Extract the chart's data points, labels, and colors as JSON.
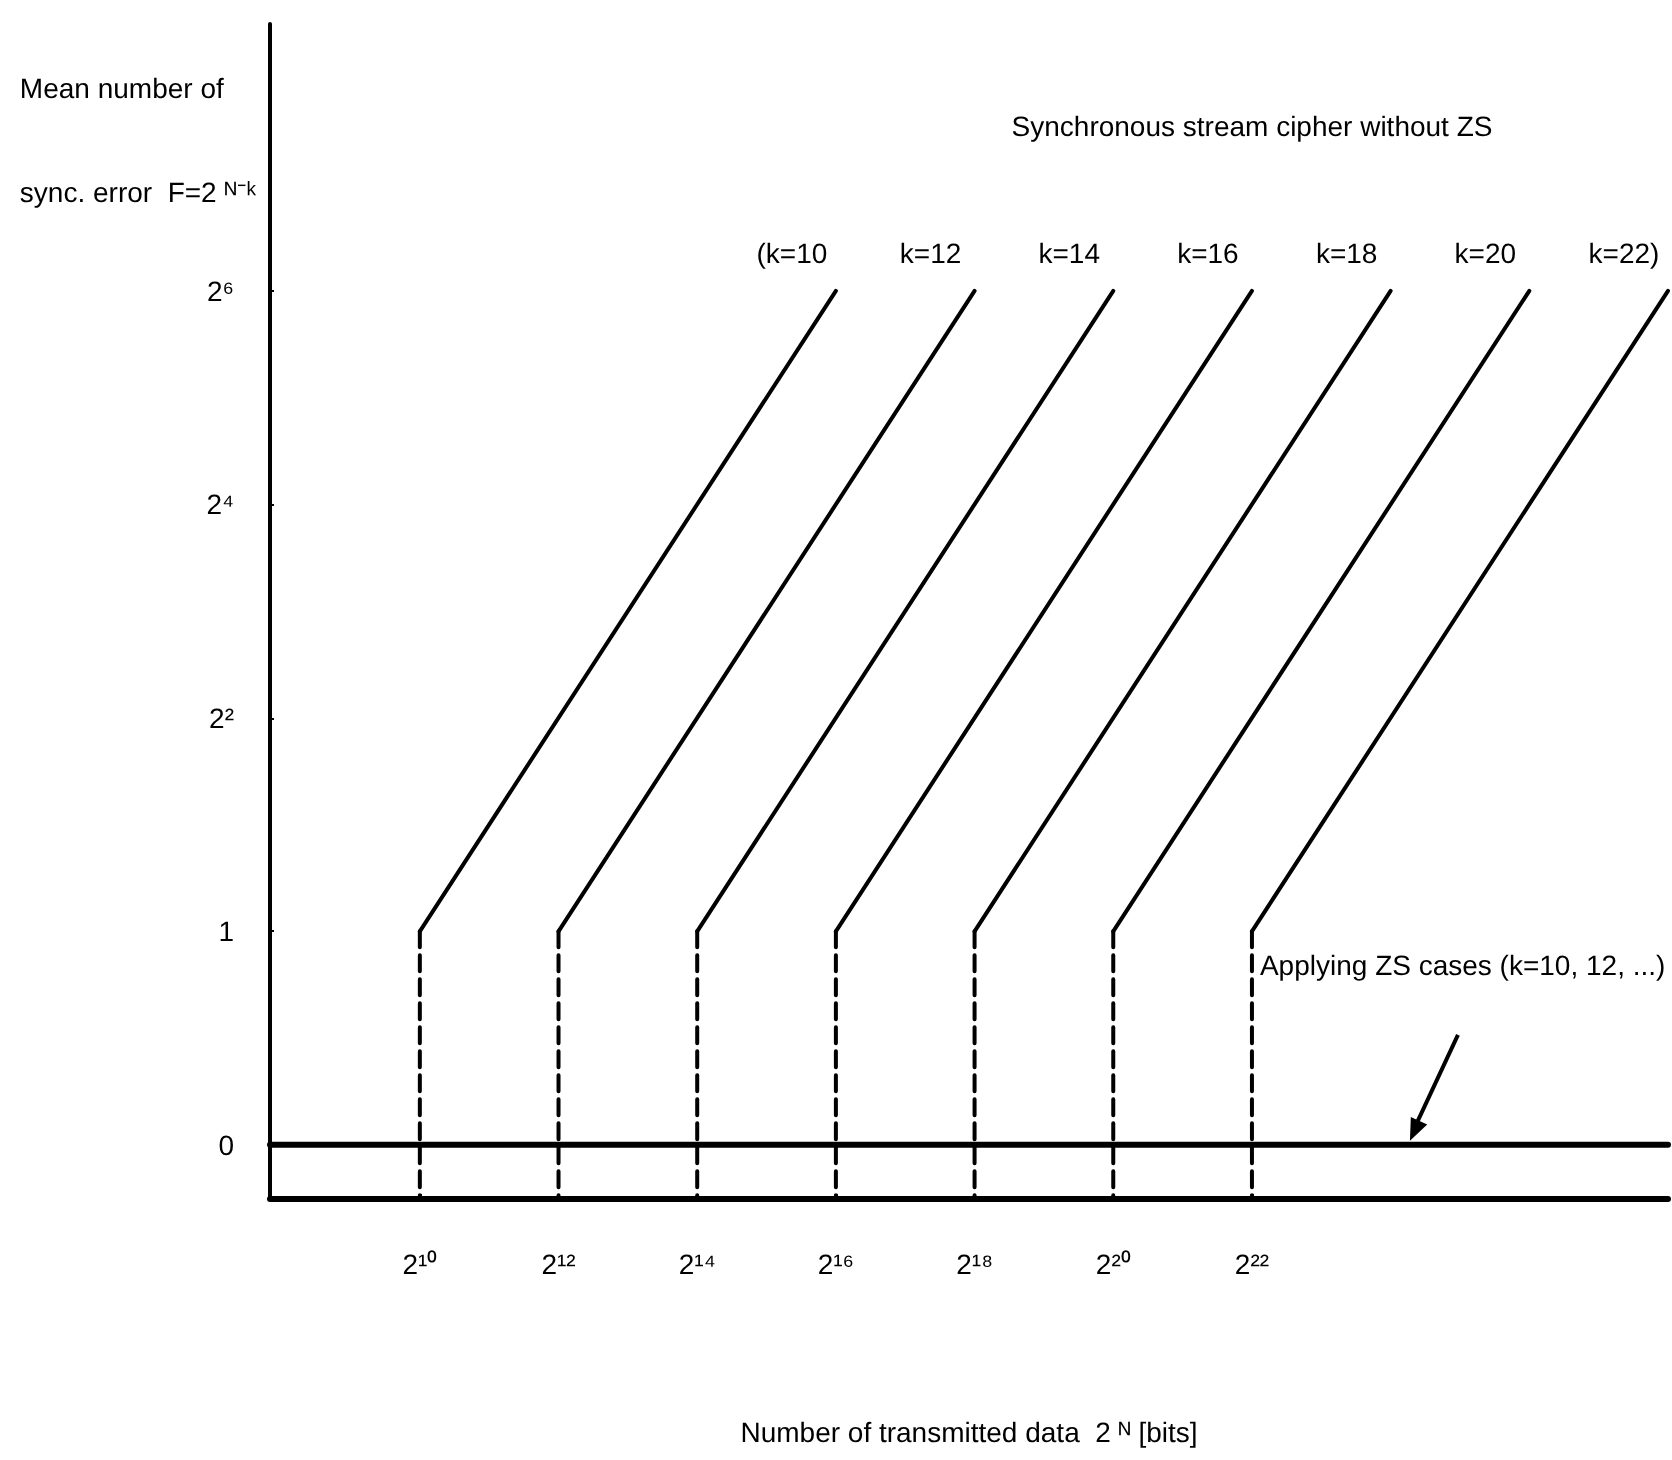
{
  "chart_data": {
    "type": "line",
    "xlabel": "Number of transmitted data  2 ᴺ [bits]",
    "ylabel": "Mean number of\nsync. error  F=2 ᴺ⁻ᵏ",
    "annotations": [
      "Synchronous stream cipher without ZS",
      "Applying ZS cases (k=10, 12, ...)"
    ],
    "log": "xy",
    "xlim": [
      229,
      268435456
    ],
    "ylim": [
      0.177,
      362
    ],
    "xticks": [
      {
        "value": 1024,
        "label": "2¹⁰"
      },
      {
        "value": 4096,
        "label": "2¹²"
      },
      {
        "value": 16384,
        "label": "2¹⁴"
      },
      {
        "value": 65536,
        "label": "2¹⁶"
      },
      {
        "value": 262144,
        "label": "2¹⁸"
      },
      {
        "value": 1048576,
        "label": "2²⁰"
      },
      {
        "value": 4194304,
        "label": "2²²"
      }
    ],
    "yticks": [
      {
        "value": 0.25,
        "label": "0"
      },
      1,
      {
        "value": 4,
        "label": "2²"
      },
      {
        "value": 16,
        "label": "2⁴"
      },
      {
        "value": 64,
        "label": "2⁶"
      }
    ],
    "grid": false,
    "legend": false,
    "marker": "none",
    "line_style": "solid",
    "series": [
      {
        "name": "(k=10",
        "color": "#000000",
        "x": [
          1024,
          65536
        ],
        "values": [
          1,
          64
        ]
      },
      {
        "name": "k=12",
        "color": "#000000",
        "x": [
          4096,
          262144
        ],
        "values": [
          1,
          64
        ]
      },
      {
        "name": "k=14",
        "color": "#000000",
        "x": [
          16384,
          1048576
        ],
        "values": [
          1,
          64
        ]
      },
      {
        "name": "k=16",
        "color": "#000000",
        "x": [
          65536,
          4194304
        ],
        "values": [
          1,
          64
        ]
      },
      {
        "name": "k=18",
        "color": "#000000",
        "x": [
          262144,
          16777216
        ],
        "values": [
          1,
          64
        ]
      },
      {
        "name": "k=20",
        "color": "#000000",
        "x": [
          1048576,
          67108864
        ],
        "values": [
          1,
          64
        ]
      },
      {
        "name": "k=22)",
        "color": "#000000",
        "x": [
          4194304,
          268435456
        ],
        "values": [
          1,
          64
        ]
      },
      {
        "color": "#000000",
        "line_style": "dashed",
        "x": [
          1024,
          1024
        ],
        "values": [
          1,
          0.177
        ]
      },
      {
        "color": "#000000",
        "line_style": "dashed",
        "x": [
          4096,
          4096
        ],
        "values": [
          1,
          0.177
        ]
      },
      {
        "color": "#000000",
        "line_style": "dashed",
        "x": [
          16384,
          16384
        ],
        "values": [
          1,
          0.177
        ]
      },
      {
        "color": "#000000",
        "line_style": "dashed",
        "x": [
          65536,
          65536
        ],
        "values": [
          1,
          0.177
        ]
      },
      {
        "color": "#000000",
        "line_style": "dashed",
        "x": [
          262144,
          262144
        ],
        "values": [
          1,
          0.177
        ]
      },
      {
        "color": "#000000",
        "line_style": "dashed",
        "x": [
          1048576,
          1048576
        ],
        "values": [
          1,
          0.177
        ]
      },
      {
        "color": "#000000",
        "line_style": "dashed",
        "x": [
          4194304,
          4194304
        ],
        "values": [
          1,
          0.177
        ]
      },
      {
        "color": "#000000",
        "x": [
          229,
          268435456
        ],
        "values": [
          0.25,
          0.25
        ]
      }
    ]
  }
}
